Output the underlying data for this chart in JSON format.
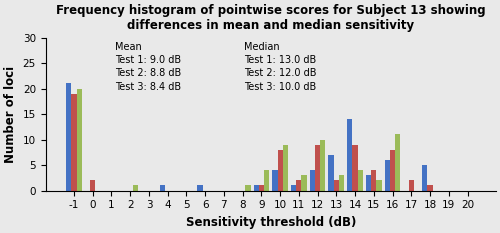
{
  "title": "Frequency histogram of pointwise scores for Subject 13 showing\ndifferences in mean and median sensitivity",
  "xlabel": "Sensitivity threshold (dB)",
  "ylabel": "Number of loci",
  "categories": [
    -1,
    0,
    1,
    2,
    3,
    4,
    5,
    6,
    7,
    8,
    9,
    10,
    11,
    12,
    13,
    14,
    15,
    16,
    17,
    18,
    19,
    20
  ],
  "test1": [
    21,
    0,
    0,
    0,
    0,
    1,
    0,
    1,
    0,
    0,
    1,
    4,
    1,
    4,
    7,
    14,
    3,
    6,
    0,
    5,
    0,
    0
  ],
  "test2": [
    19,
    2,
    0,
    0,
    0,
    0,
    0,
    0,
    0,
    0,
    1,
    8,
    2,
    9,
    2,
    9,
    4,
    8,
    2,
    1,
    0,
    0
  ],
  "test3": [
    20,
    0,
    0,
    1,
    0,
    0,
    0,
    0,
    0,
    1,
    4,
    9,
    3,
    10,
    3,
    4,
    2,
    11,
    0,
    0,
    0,
    0
  ],
  "colors": [
    "#4472C4",
    "#C0504D",
    "#9BBB59"
  ],
  "bg_color": "#E9E9E9",
  "ylim": [
    0,
    30
  ],
  "yticks": [
    0,
    5,
    10,
    15,
    20,
    25,
    30
  ],
  "title_fontsize": 8.5,
  "axis_label_fontsize": 8.5,
  "tick_fontsize": 7.5,
  "annot_fontsize": 7.0
}
